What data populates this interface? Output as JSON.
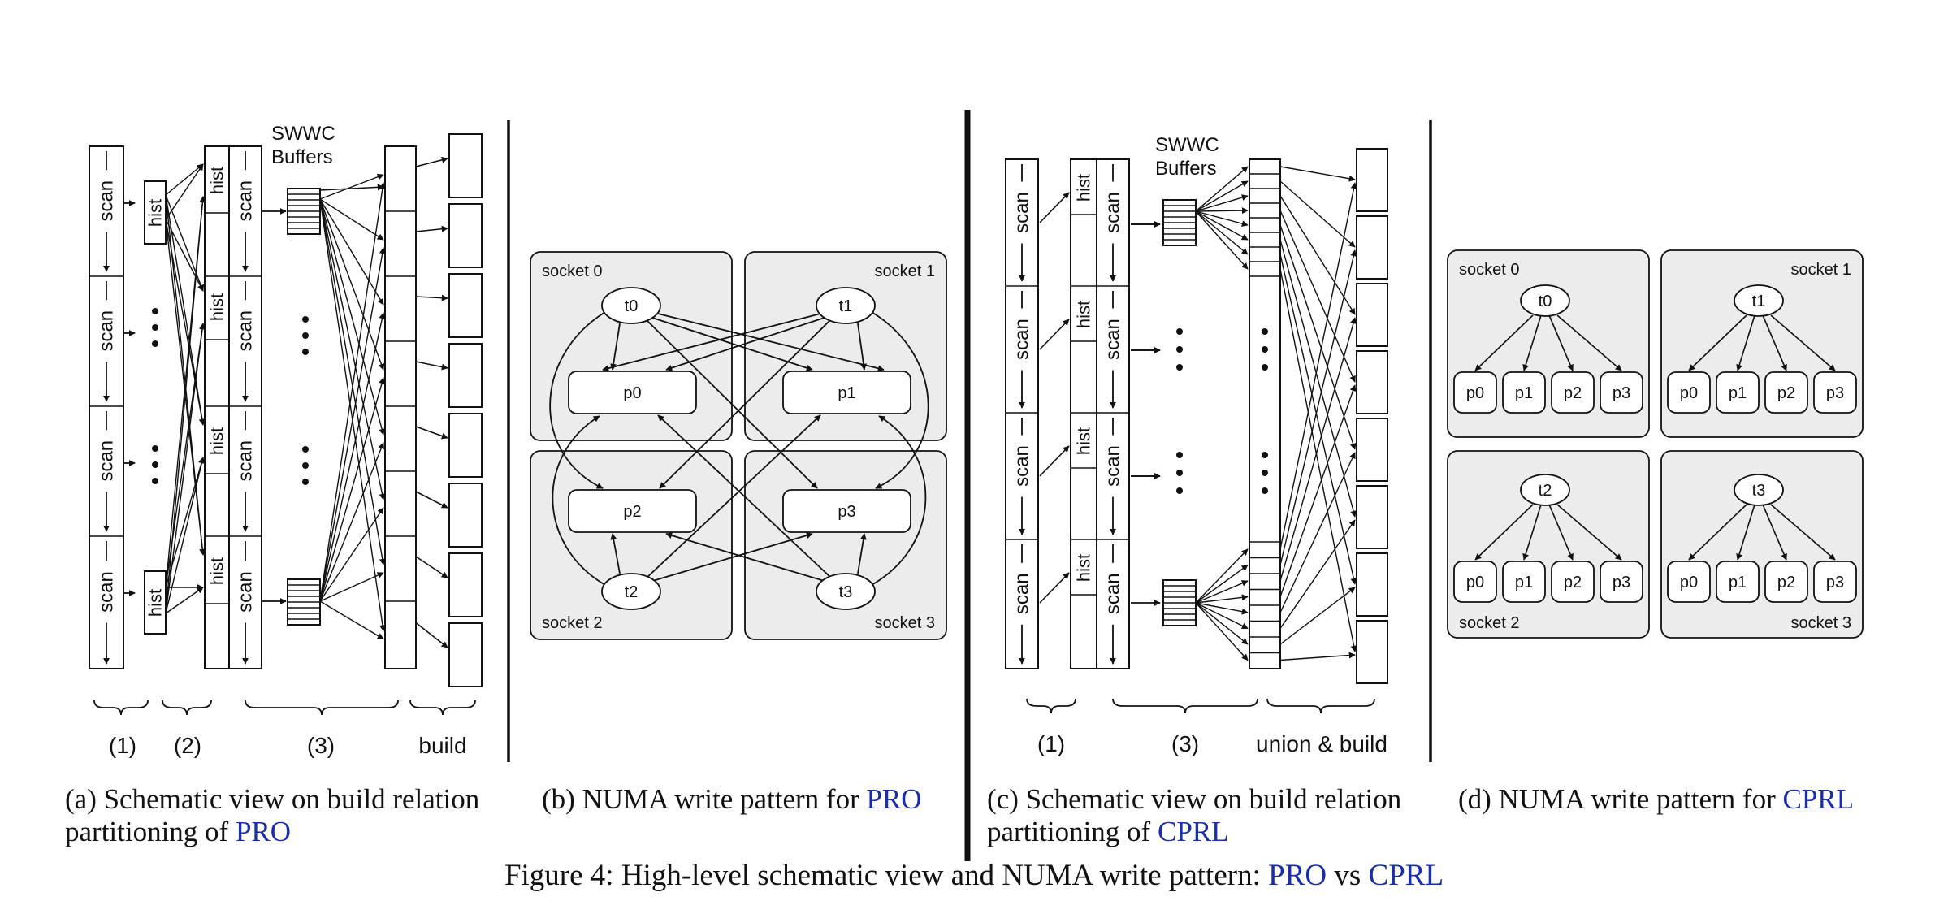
{
  "panel_a": {
    "scan_label": "scan",
    "hist_label": "hist",
    "swwc_line1": "SWWC",
    "swwc_line2": "Buffers",
    "bracket_labels": [
      "(1)",
      "(2)",
      "(3)",
      "build"
    ]
  },
  "panel_b": {
    "socket_labels": [
      "socket 0",
      "socket 1",
      "socket 2",
      "socket 3"
    ],
    "thread_labels": [
      "t0",
      "t1",
      "t2",
      "t3"
    ],
    "partition_labels": [
      "p0",
      "p1",
      "p2",
      "p3"
    ]
  },
  "panel_c": {
    "scan_label": "scan",
    "hist_label": "hist",
    "swwc_line1": "SWWC",
    "swwc_line2": "Buffers",
    "bracket_labels": [
      "(1)",
      "(3)",
      "union & build"
    ]
  },
  "panel_d": {
    "socket_labels": [
      "socket 0",
      "socket 1",
      "socket 2",
      "socket 3"
    ],
    "thread_labels": [
      "t0",
      "t1",
      "t2",
      "t3"
    ],
    "partition_labels": [
      "p0",
      "p1",
      "p2",
      "p3"
    ]
  },
  "captions": {
    "a_line1": "(a) Schematic view on build relation",
    "a_line2_prefix": "partitioning of ",
    "a_line2_link": "PRO",
    "b_prefix": "(b) NUMA write pattern for ",
    "b_link": "PRO",
    "c_line1": "(c) Schematic view on build relation",
    "c_line2_prefix": "partitioning of ",
    "c_line2_link": "CPRL",
    "d_prefix": "(d) NUMA write pattern for ",
    "d_link": "CPRL",
    "figure_prefix": "Figure 4: High-level schematic view and NUMA write pattern: ",
    "figure_link1": "PRO",
    "figure_mid": " vs ",
    "figure_link2": "CPRL"
  },
  "colors": {
    "link": "#1a2ea8",
    "socket_fill": "#ececec",
    "stroke": "#111111"
  }
}
